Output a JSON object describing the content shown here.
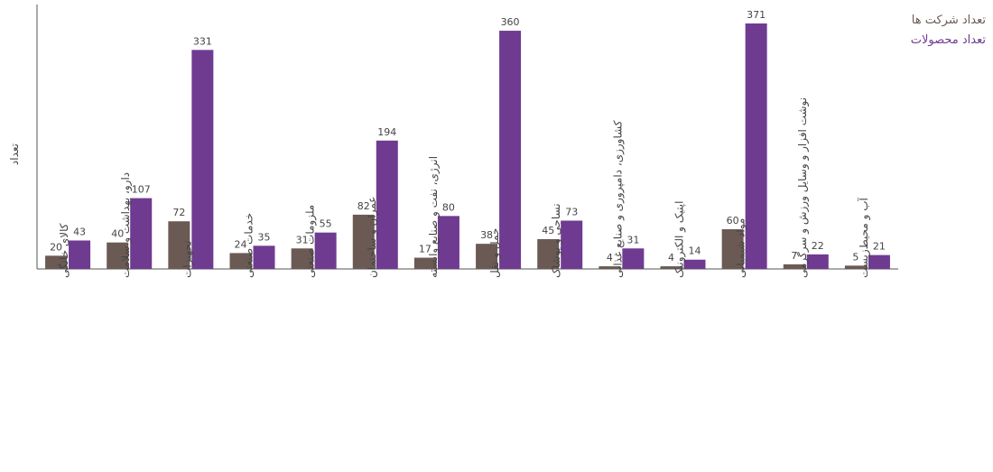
{
  "chart_data": {
    "type": "bar",
    "ylabel": "تعداد",
    "xlabel": "",
    "ylim": [
      0,
      390
    ],
    "grid": false,
    "legend_position": "top-right",
    "categories": [
      "کالای خانگی",
      "دارو، بهداشت و سلامت",
      "تجهیزات",
      "خدمات صنعتی",
      "ملزومات صنعتی",
      "عمران و ساختمان",
      "انرژی، نفت و صنایع وابسته",
      "حمل و نقل",
      "نساجی و پوشاک",
      "کشاورزی، دامپروری و صنایع غذایی",
      "اپتیک و الکترونیک",
      "مواد شیمیایی",
      "نوشت افزار و وسایل ورزش و سرگرمی",
      "آب و محیط‌زیست"
    ],
    "series": [
      {
        "name": "تعداد شرکت ها",
        "color": "#6b5a54",
        "values": [
          20,
          40,
          72,
          24,
          31,
          82,
          17,
          38,
          45,
          4,
          4,
          60,
          7,
          5
        ]
      },
      {
        "name": "تعداد محصولات",
        "color": "#6f3b91",
        "values": [
          43,
          107,
          331,
          35,
          55,
          194,
          80,
          360,
          73,
          31,
          14,
          371,
          22,
          21
        ]
      }
    ]
  }
}
